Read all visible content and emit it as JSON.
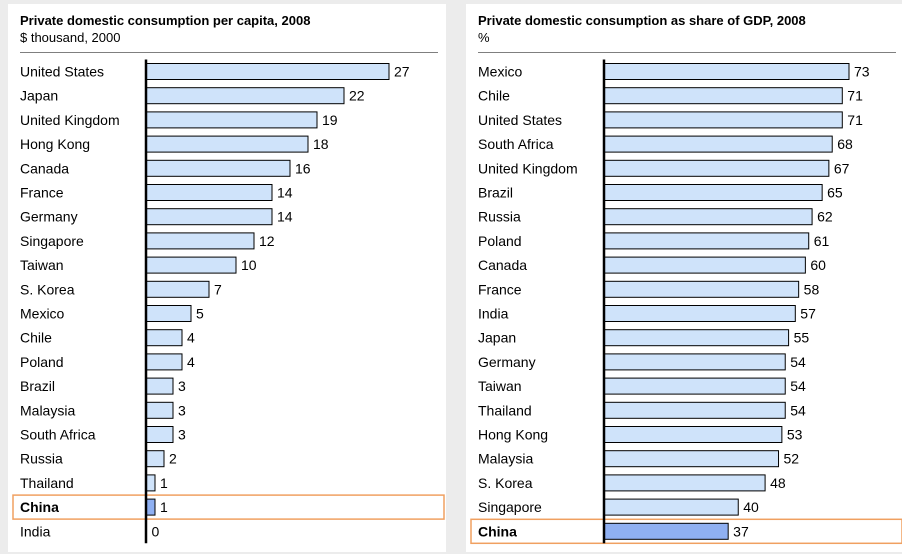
{
  "colors": {
    "bar_fill": "#cfe3fa",
    "bar_stroke": "#000000",
    "highlight_bar_fill": "#8fb0f2",
    "highlight_box": "#f0a060",
    "rule": "#7f7f7f"
  },
  "chart_data": [
    {
      "type": "bar",
      "orientation": "horizontal",
      "title": "Private domestic consumption per capita, 2008",
      "subtitle": "$ thousand, 2000",
      "xlim": [
        0,
        27
      ],
      "highlight": "China",
      "categories": [
        "United States",
        "Japan",
        "United Kingdom",
        "Hong Kong",
        "Canada",
        "France",
        "Germany",
        "Singapore",
        "Taiwan",
        "S. Korea",
        "Mexico",
        "Chile",
        "Poland",
        "Brazil",
        "Malaysia",
        "South Africa",
        "Russia",
        "Thailand",
        "China",
        "India"
      ],
      "values": [
        27,
        22,
        19,
        18,
        16,
        14,
        14,
        12,
        10,
        7,
        5,
        4,
        4,
        3,
        3,
        3,
        2,
        1,
        1,
        0
      ]
    },
    {
      "type": "bar",
      "orientation": "horizontal",
      "title": "Private domestic consumption as share of GDP, 2008",
      "subtitle": "%",
      "xlim": [
        0,
        73
      ],
      "highlight": "China",
      "categories": [
        "Mexico",
        "Chile",
        "United States",
        "South Africa",
        "United Kingdom",
        "Brazil",
        "Russia",
        "Poland",
        "Canada",
        "France",
        "India",
        "Japan",
        "Germany",
        "Taiwan",
        "Thailand",
        "Hong Kong",
        "Malaysia",
        "S. Korea",
        "Singapore",
        "China"
      ],
      "values": [
        73,
        71,
        71,
        68,
        67,
        65,
        62,
        61,
        60,
        58,
        57,
        55,
        54,
        54,
        54,
        53,
        52,
        48,
        40,
        37
      ]
    }
  ]
}
